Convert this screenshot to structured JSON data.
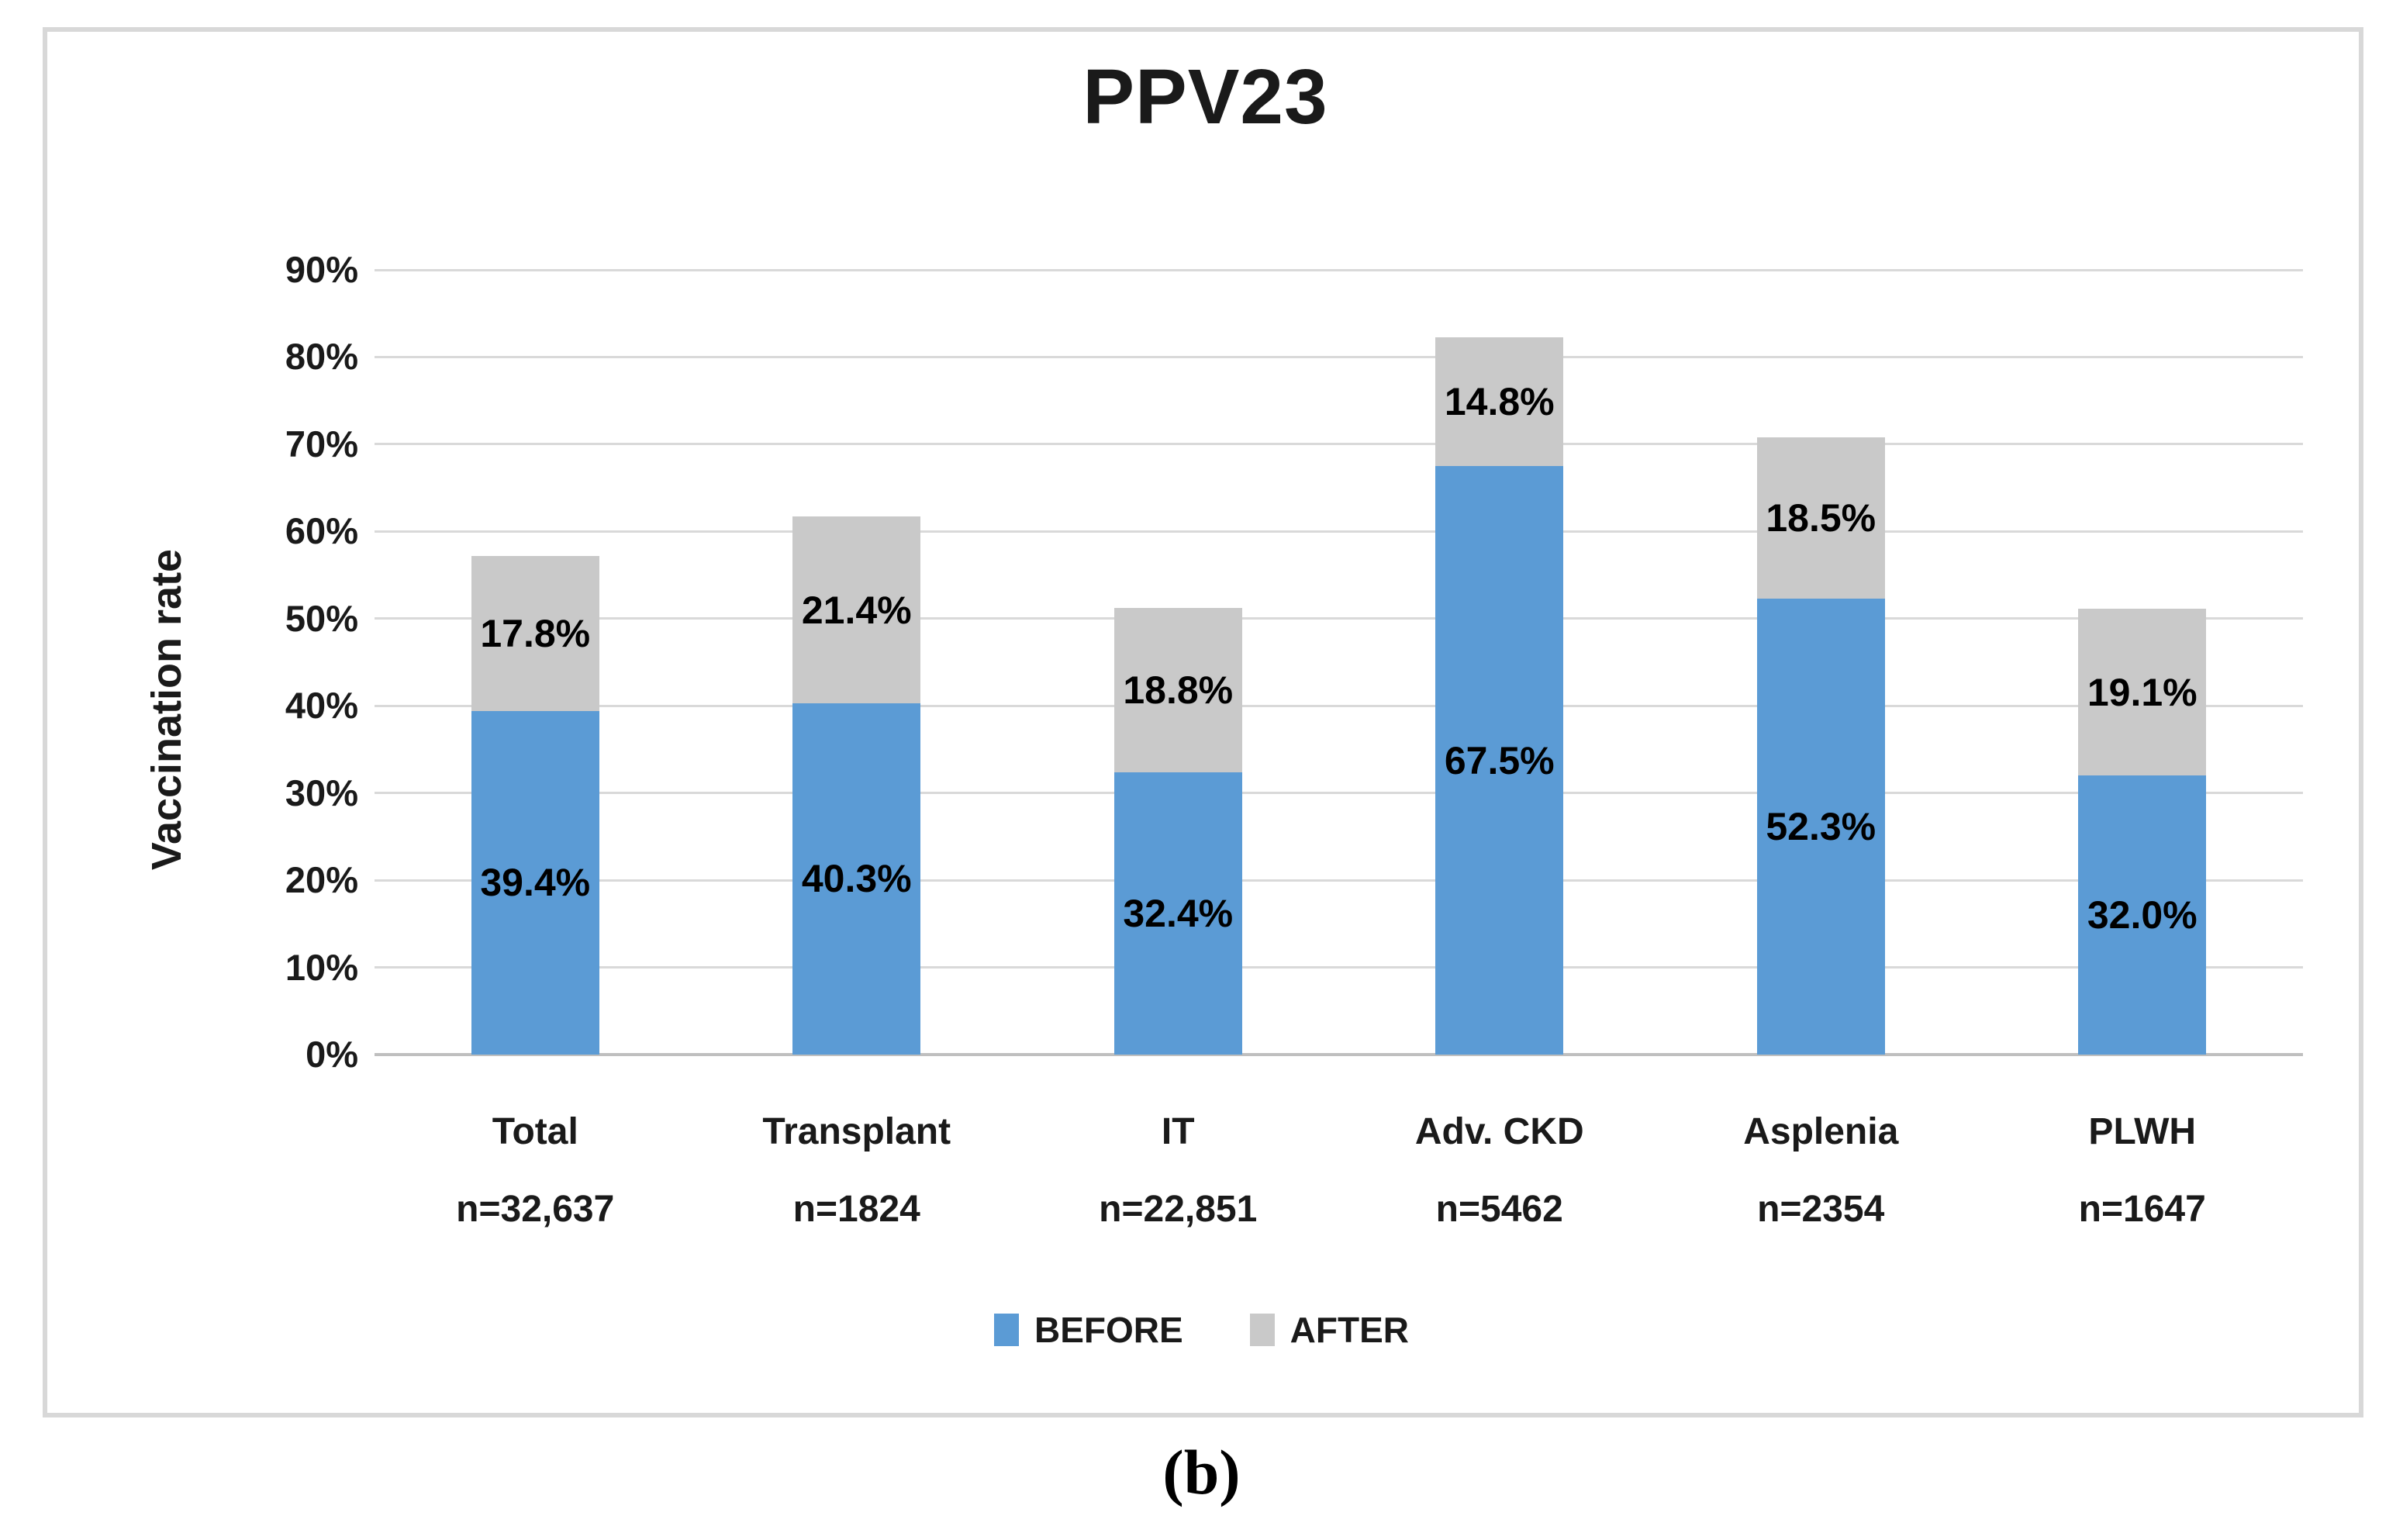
{
  "figure": {
    "caption": "(b)"
  },
  "chart_data": {
    "type": "bar",
    "stacked": true,
    "title": "PPV23",
    "xlabel": "",
    "ylabel": "Vaccination rate",
    "ylim": [
      0,
      90
    ],
    "ytick_step": 10,
    "ytick_suffix": "%",
    "grid": true,
    "legend_position": "bottom",
    "categories": [
      "Total",
      "Transplant",
      "IT",
      "Adv. CKD",
      "Asplenia",
      "PLWH"
    ],
    "category_sublabels": [
      "n=32,637",
      "n=1824",
      "n=22,851",
      "n=5462",
      "n=2354",
      "n=1647"
    ],
    "series": [
      {
        "name": "BEFORE",
        "color": "#5B9BD5",
        "values": [
          39.4,
          40.3,
          32.4,
          67.5,
          52.3,
          32.0
        ],
        "labels": [
          "39.4%",
          "40.3%",
          "32.4%",
          "67.5%",
          "52.3%",
          "32.0%"
        ]
      },
      {
        "name": "AFTER",
        "color": "#C9C9C9",
        "values": [
          17.8,
          21.4,
          18.8,
          14.8,
          18.5,
          19.1
        ],
        "labels": [
          "17.8%",
          "21.4%",
          "18.8%",
          "14.8%",
          "18.5%",
          "19.1%"
        ]
      }
    ],
    "colors": {
      "gridline": "#D9D9D9",
      "axis_line": "#BFBFBF",
      "frame_border": "#D8D8D8",
      "text": "#1A1A1A"
    }
  }
}
